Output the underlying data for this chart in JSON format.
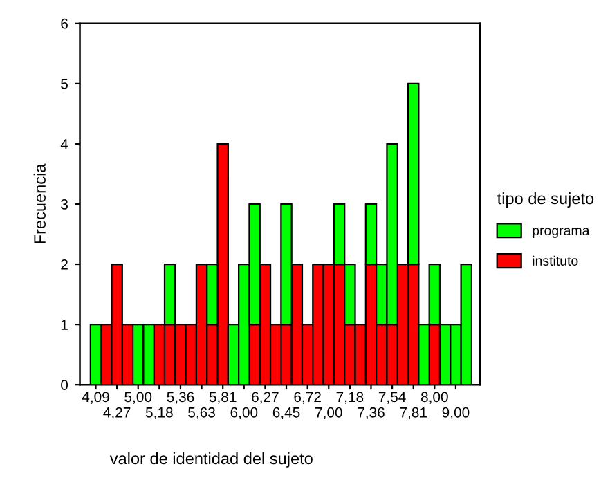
{
  "chart_data": {
    "type": "bar",
    "stacked": true,
    "xlabel": "valor de identidad del sujeto",
    "ylabel": "Frecuencia",
    "categories": [
      "4,09",
      null,
      "4,27",
      null,
      "5,00",
      null,
      "5,18",
      null,
      "5,36",
      null,
      "5,63",
      null,
      "5,81",
      null,
      "6,00",
      null,
      "6,27",
      null,
      "6,45",
      null,
      "6,72",
      null,
      "7,00",
      null,
      "7,18",
      null,
      "7,36",
      null,
      "7,54",
      null,
      "7,81",
      null,
      "8,00",
      null,
      "9,00",
      null
    ],
    "series": [
      {
        "name": "instituto",
        "color": "#ff0000",
        "values": [
          0,
          1,
          2,
          1,
          0,
          0,
          1,
          1,
          1,
          1,
          2,
          1,
          4,
          0,
          0,
          1,
          2,
          1,
          1,
          2,
          1,
          2,
          2,
          2,
          1,
          1,
          2,
          1,
          1,
          2,
          2,
          0,
          1,
          0,
          0,
          0
        ]
      },
      {
        "name": "programa",
        "color": "#00ff00",
        "values": [
          1,
          0,
          0,
          0,
          1,
          1,
          0,
          1,
          0,
          0,
          0,
          1,
          0,
          1,
          2,
          2,
          0,
          0,
          2,
          0,
          0,
          0,
          0,
          1,
          1,
          0,
          1,
          1,
          3,
          0,
          3,
          1,
          1,
          1,
          1,
          2
        ]
      }
    ],
    "ylim": [
      0,
      6
    ],
    "yticks": [
      0,
      1,
      2,
      3,
      4,
      5,
      6
    ],
    "legend": "right",
    "legend_title": "tipo de sujeto",
    "grid": false
  }
}
